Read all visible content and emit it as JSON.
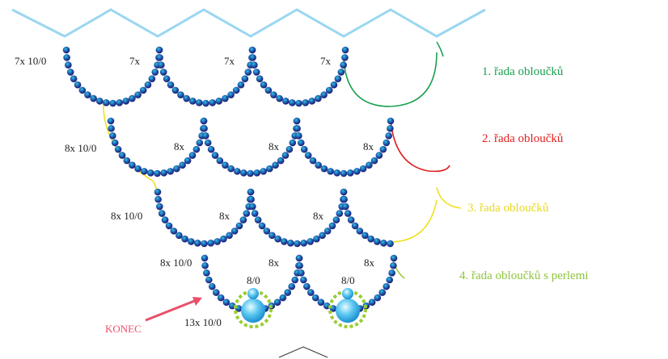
{
  "row_labels": [
    [
      "7x 10/0",
      "7x",
      "7x",
      "7x"
    ],
    [
      "8x 10/0",
      "8x",
      "8x",
      "8x"
    ],
    [
      "8x 10/0",
      "8x",
      "8x"
    ],
    [
      "8x 10/0",
      "8x",
      "8x"
    ]
  ],
  "pearl_labels": [
    "8/0",
    "8/0"
  ],
  "pearl_count_label": "13x 10/0",
  "end_label": "KONEC",
  "legend": [
    "1. řada obloučků",
    "2. řada obloučků",
    "3. řada obloučků",
    "4. řada obloučků s perlemi"
  ]
}
